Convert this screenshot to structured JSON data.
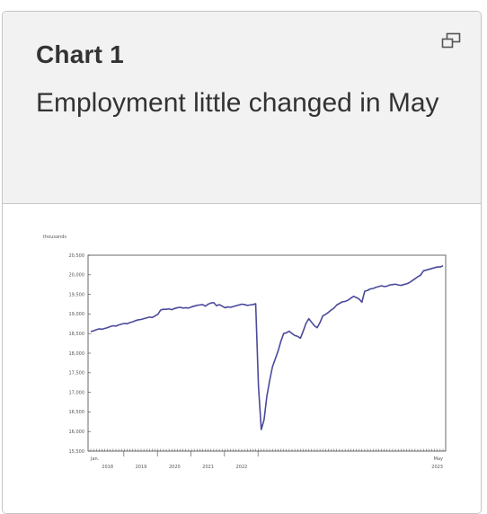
{
  "card": {
    "number_label": "Chart 1",
    "title": "Employment little changed in May",
    "expand_icon": "expand-window-icon"
  },
  "chart_data": {
    "type": "line",
    "title": "",
    "xlabel": "",
    "ylabel": "thousands",
    "ylim": [
      15500,
      20500
    ],
    "yticks": [
      15500,
      16000,
      16500,
      17000,
      17500,
      18000,
      18500,
      19000,
      19500,
      20000,
      20500
    ],
    "ytick_labels": [
      "15,500",
      "16,000",
      "16,500",
      "17,000",
      "17,500",
      "18,000",
      "18,500",
      "19,000",
      "19,500",
      "20,000",
      "20,500"
    ],
    "x_start_label": "Jan.",
    "x_end_label": "May",
    "year_labels": [
      "2018",
      "2019",
      "2020",
      "2021",
      "2022",
      "2023"
    ],
    "line_color": "#4a4a9c",
    "series": [
      {
        "values": [
          18550,
          18570,
          18600,
          18620,
          18610,
          18630,
          18650,
          18680,
          18700,
          18690,
          18720,
          18740,
          18760,
          18750,
          18780,
          18800,
          18830,
          18850,
          18860,
          18880,
          18900,
          18920,
          18910,
          18950,
          18990,
          19100,
          19120,
          19120,
          19130,
          19110,
          19140,
          19160,
          19170,
          19150,
          19160,
          19150,
          19180,
          19200,
          19220,
          19230,
          19240,
          19200,
          19250,
          19280,
          19290,
          19210,
          19240,
          19200,
          19160,
          19180,
          19170,
          19190,
          19210,
          19230,
          19250,
          19240,
          19220,
          19230,
          19240,
          19260,
          17150,
          16050,
          16300,
          16900,
          17300,
          17650,
          17850,
          18050,
          18300,
          18500,
          18520,
          18560,
          18500,
          18450,
          18430,
          18380,
          18560,
          18760,
          18880,
          18790,
          18700,
          18650,
          18780,
          18950,
          18990,
          19040,
          19100,
          19150,
          19230,
          19270,
          19310,
          19320,
          19350,
          19400,
          19450,
          19420,
          19380,
          19300,
          19580,
          19600,
          19640,
          19650,
          19680,
          19700,
          19720,
          19700,
          19710,
          19740,
          19750,
          19760,
          19740,
          19730,
          19750,
          19770,
          19800,
          19850,
          19900,
          19950,
          19990,
          20100,
          20120,
          20140,
          20160,
          20180,
          20200,
          20200,
          20230
        ]
      }
    ]
  }
}
